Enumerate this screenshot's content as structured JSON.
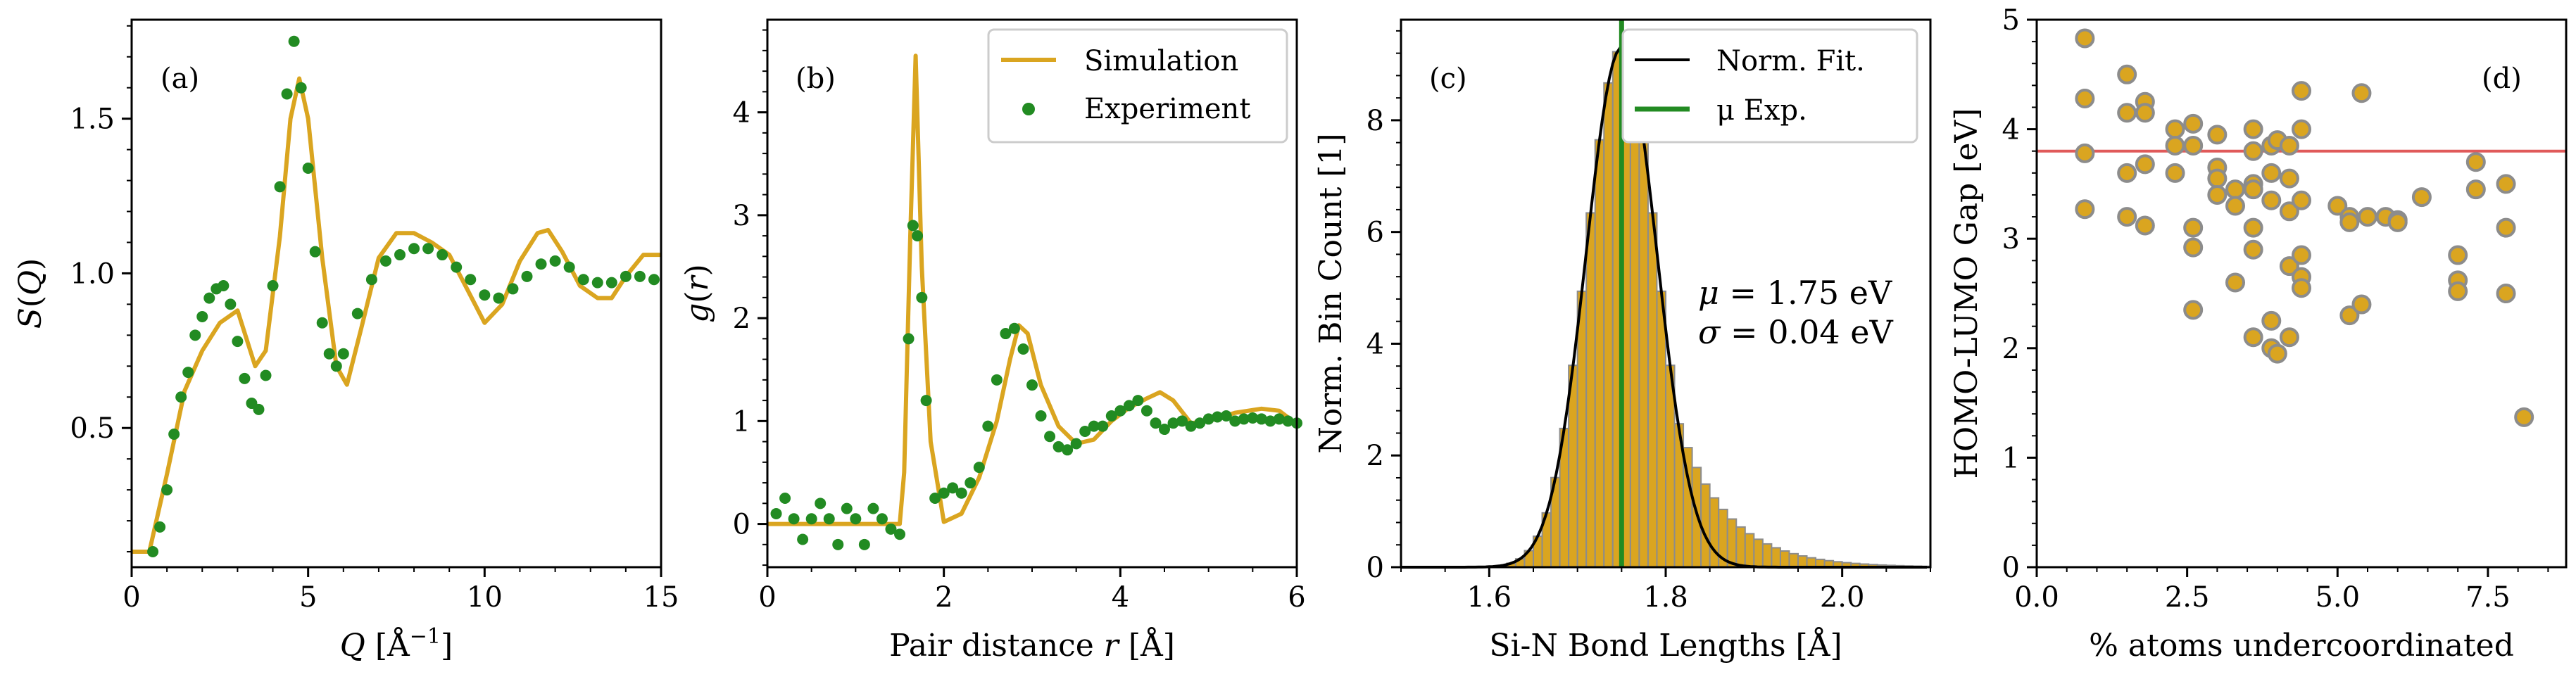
{
  "colors": {
    "sim": "#daa520",
    "exp": "#228b22",
    "bar_edge": "#8c8c8c",
    "gap_line": "#e05a5a",
    "black": "#000000"
  },
  "chart_data": [
    {
      "id": "a",
      "type": "line",
      "panel_label": "(a)",
      "xlabel_var": "Q",
      "xlabel_unit": " [Å",
      "xlabel_sup": "−1",
      "xlabel_close": "]",
      "ylabel_s": "S",
      "ylabel_paren": "(",
      "ylabel_var": "Q",
      "ylabel_close": ")",
      "xlim": [
        0,
        15
      ],
      "ylim": [
        0.05,
        1.82
      ],
      "xticks": [
        0,
        5,
        10,
        15
      ],
      "xtick_labels": [
        "0",
        "5",
        "10",
        "15"
      ],
      "yticks": [
        0.5,
        1.0,
        1.5
      ],
      "ytick_labels": [
        "0.5",
        "1.0",
        "1.5"
      ],
      "series": [
        {
          "name": "Simulation",
          "style": "line",
          "color": "#daa520",
          "x": [
            0,
            0.5,
            1.0,
            1.5,
            2.0,
            2.5,
            3.0,
            3.5,
            3.8,
            4.2,
            4.5,
            4.75,
            5.0,
            5.4,
            5.8,
            6.1,
            6.5,
            7.0,
            7.5,
            8.0,
            8.5,
            9.0,
            9.5,
            10.0,
            10.5,
            11.0,
            11.5,
            11.8,
            12.2,
            12.7,
            13.2,
            13.6,
            14.0,
            14.5,
            15.0
          ],
          "y": [
            0.1,
            0.1,
            0.35,
            0.62,
            0.75,
            0.84,
            0.88,
            0.7,
            0.75,
            1.12,
            1.5,
            1.63,
            1.5,
            1.05,
            0.7,
            0.64,
            0.82,
            1.05,
            1.13,
            1.13,
            1.1,
            1.06,
            0.95,
            0.84,
            0.9,
            1.04,
            1.13,
            1.14,
            1.07,
            0.96,
            0.92,
            0.92,
            0.99,
            1.06,
            1.06
          ]
        },
        {
          "name": "Experiment",
          "style": "points",
          "color": "#228b22",
          "x": [
            0.6,
            0.8,
            1.0,
            1.2,
            1.4,
            1.6,
            1.8,
            2.0,
            2.2,
            2.4,
            2.6,
            2.8,
            3.0,
            3.2,
            3.4,
            3.6,
            3.8,
            4.0,
            4.2,
            4.4,
            4.6,
            4.8,
            5.0,
            5.2,
            5.4,
            5.6,
            5.8,
            6.0,
            6.4,
            6.8,
            7.2,
            7.6,
            8.0,
            8.4,
            8.8,
            9.2,
            9.6,
            10.0,
            10.4,
            10.8,
            11.2,
            11.6,
            12.0,
            12.4,
            12.8,
            13.2,
            13.6,
            14.0,
            14.4,
            14.8
          ],
          "y": [
            0.1,
            0.18,
            0.3,
            0.48,
            0.6,
            0.68,
            0.8,
            0.86,
            0.92,
            0.95,
            0.96,
            0.9,
            0.78,
            0.66,
            0.58,
            0.56,
            0.67,
            0.96,
            1.28,
            1.58,
            1.75,
            1.6,
            1.34,
            1.07,
            0.84,
            0.74,
            0.7,
            0.74,
            0.87,
            0.98,
            1.04,
            1.06,
            1.08,
            1.08,
            1.06,
            1.02,
            0.98,
            0.93,
            0.92,
            0.95,
            0.99,
            1.03,
            1.04,
            1.02,
            0.98,
            0.97,
            0.97,
            0.99,
            0.99,
            0.98
          ]
        }
      ]
    },
    {
      "id": "b",
      "type": "line",
      "panel_label": "(b)",
      "xlabel_text": "Pair distance ",
      "xlabel_var": "r",
      "xlabel_unit": " [Å]",
      "ylabel_var": "g",
      "ylabel_paren": "(",
      "ylabel_var2": "r",
      "ylabel_close": ")",
      "xlim": [
        0,
        6
      ],
      "ylim": [
        -0.42,
        4.9
      ],
      "xticks": [
        0,
        2,
        4,
        6
      ],
      "xtick_labels": [
        "0",
        "2",
        "4",
        "6"
      ],
      "yticks": [
        0,
        1,
        2,
        3,
        4
      ],
      "ytick_labels": [
        "0",
        "1",
        "2",
        "3",
        "4"
      ],
      "legend": [
        "Simulation",
        "Experiment"
      ],
      "series": [
        {
          "name": "Simulation",
          "style": "line",
          "color": "#daa520",
          "x": [
            0,
            0.5,
            1.0,
            1.5,
            1.55,
            1.62,
            1.68,
            1.75,
            1.85,
            2.0,
            2.2,
            2.4,
            2.6,
            2.75,
            2.85,
            2.95,
            3.1,
            3.3,
            3.5,
            3.7,
            3.9,
            4.1,
            4.3,
            4.45,
            4.6,
            4.8,
            5.0,
            5.3,
            5.6,
            5.8,
            6.0
          ],
          "y": [
            0,
            0,
            0,
            0,
            0.5,
            2.8,
            4.55,
            2.5,
            0.8,
            0.02,
            0.1,
            0.45,
            1.0,
            1.6,
            1.93,
            1.85,
            1.35,
            0.95,
            0.78,
            0.82,
            1.0,
            1.13,
            1.22,
            1.28,
            1.2,
            0.98,
            1.0,
            1.08,
            1.12,
            1.1,
            0.97
          ]
        },
        {
          "name": "Experiment",
          "style": "points",
          "color": "#228b22",
          "x": [
            0.1,
            0.2,
            0.3,
            0.4,
            0.5,
            0.6,
            0.7,
            0.8,
            0.9,
            1.0,
            1.1,
            1.2,
            1.3,
            1.4,
            1.5,
            1.6,
            1.65,
            1.7,
            1.75,
            1.8,
            1.9,
            2.0,
            2.1,
            2.2,
            2.3,
            2.4,
            2.5,
            2.6,
            2.7,
            2.8,
            2.9,
            3.0,
            3.1,
            3.2,
            3.3,
            3.4,
            3.5,
            3.6,
            3.7,
            3.8,
            3.9,
            4.0,
            4.1,
            4.2,
            4.3,
            4.4,
            4.5,
            4.6,
            4.7,
            4.8,
            4.9,
            5.0,
            5.1,
            5.2,
            5.3,
            5.4,
            5.5,
            5.6,
            5.7,
            5.8,
            5.9,
            6.0
          ],
          "y": [
            0.1,
            0.25,
            0.05,
            -0.15,
            0.05,
            0.2,
            0.05,
            -0.2,
            0.15,
            0.05,
            -0.2,
            0.15,
            0.05,
            -0.05,
            -0.1,
            1.8,
            2.9,
            2.8,
            2.2,
            1.2,
            0.25,
            0.3,
            0.35,
            0.3,
            0.4,
            0.55,
            0.95,
            1.4,
            1.85,
            1.9,
            1.7,
            1.35,
            1.05,
            0.85,
            0.75,
            0.72,
            0.78,
            0.9,
            0.95,
            0.95,
            1.05,
            1.1,
            1.15,
            1.2,
            1.1,
            0.98,
            0.92,
            0.98,
            1.0,
            0.95,
            0.98,
            1.02,
            1.04,
            1.05,
            1.0,
            1.02,
            1.03,
            1.02,
            1.0,
            1.02,
            1.0,
            0.98
          ]
        }
      ]
    },
    {
      "id": "c",
      "type": "bar",
      "panel_label": "(c)",
      "xlabel": "Si-N Bond Lengths [Å]",
      "ylabel": "Norm. Bin Count [1]",
      "xlim": [
        1.5,
        2.1
      ],
      "ylim": [
        0,
        9.8
      ],
      "xticks": [
        1.6,
        1.8,
        2.0
      ],
      "xtick_labels": [
        "1.6",
        "1.8",
        "2.0"
      ],
      "yticks": [
        0,
        2,
        4,
        6,
        8
      ],
      "ytick_labels": [
        "0",
        "2",
        "4",
        "6",
        "8"
      ],
      "legend": [
        "Norm. Fit.",
        "μ Exp."
      ],
      "mu": 1.75,
      "sigma": 0.04,
      "mu_exp": 1.75,
      "annotation_line1": {
        "sym": "μ",
        "rest": " = 1.75 eV"
      },
      "annotation_line2": {
        "sym": "σ",
        "rest": " = 0.04 eV"
      },
      "hist_start": 1.55,
      "hist_end": 2.1,
      "bin_width": 0.01,
      "peak_count": 9.3
    },
    {
      "id": "d",
      "type": "scatter",
      "panel_label": "(d)",
      "xlabel": "% atoms undercoordinated",
      "ylabel": "HOMO-LUMO Gap [eV]",
      "xlim": [
        0,
        8.8
      ],
      "ylim": [
        0,
        5
      ],
      "xticks": [
        0,
        2.5,
        5,
        7.5
      ],
      "xtick_labels": [
        "0.0",
        "2.5",
        "5.0",
        "7.5"
      ],
      "yticks": [
        0,
        1,
        2,
        3,
        4,
        5
      ],
      "ytick_labels": [
        "0",
        "1",
        "2",
        "3",
        "4",
        "5"
      ],
      "hline": 3.8,
      "x": [
        0.8,
        0.8,
        0.8,
        0.8,
        1.5,
        1.5,
        1.5,
        1.5,
        1.8,
        1.8,
        1.8,
        1.8,
        2.3,
        2.3,
        2.3,
        2.6,
        2.6,
        2.6,
        2.6,
        2.6,
        3.0,
        3.0,
        3.0,
        3.0,
        3.3,
        3.3,
        3.3,
        3.6,
        3.6,
        3.6,
        3.6,
        3.6,
        3.6,
        3.6,
        3.9,
        3.9,
        3.9,
        3.9,
        3.9,
        4.0,
        4.0,
        4.2,
        4.2,
        4.2,
        4.2,
        4.2,
        4.4,
        4.4,
        4.4,
        4.4,
        4.4,
        4.4,
        5.0,
        5.2,
        5.2,
        5.2,
        5.4,
        5.4,
        5.5,
        5.8,
        6.0,
        6.0,
        6.4,
        7.0,
        7.0,
        7.0,
        7.3,
        7.3,
        7.8,
        7.8,
        7.8,
        8.1
      ],
      "y": [
        4.83,
        4.28,
        3.78,
        3.27,
        4.5,
        4.15,
        3.2,
        3.6,
        4.25,
        4.15,
        3.68,
        3.12,
        4.0,
        3.85,
        3.6,
        4.05,
        3.85,
        3.1,
        2.92,
        2.35,
        3.95,
        3.65,
        3.55,
        3.4,
        3.45,
        3.3,
        2.6,
        4.0,
        3.8,
        3.5,
        3.45,
        3.1,
        2.9,
        2.1,
        3.85,
        3.6,
        3.35,
        2.25,
        2.0,
        3.9,
        1.95,
        3.85,
        3.55,
        3.25,
        2.75,
        2.1,
        4.35,
        4.0,
        3.35,
        2.85,
        2.65,
        2.55,
        3.3,
        3.2,
        3.15,
        2.3,
        4.33,
        2.4,
        3.2,
        3.2,
        3.17,
        3.15,
        3.38,
        2.85,
        2.62,
        2.52,
        3.7,
        3.45,
        3.5,
        3.1,
        2.5,
        1.37
      ]
    }
  ]
}
